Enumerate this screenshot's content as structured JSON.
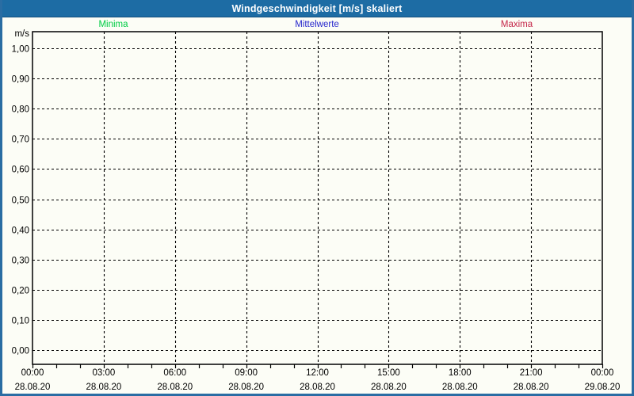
{
  "window": {
    "title": "Windgeschwindigkeit [m/s] skaliert"
  },
  "legend": {
    "items": [
      {
        "label": "Minima",
        "color": "#00cc44"
      },
      {
        "label": "Mittelwerte",
        "color": "#2626cc"
      },
      {
        "label": "Maxima",
        "color": "#c42548"
      }
    ]
  },
  "colors": {
    "titlebar_bg": "#1d6ca4",
    "frame_border": "#2a6da3",
    "page_bg": "#fcfdf6",
    "grid": "#000000",
    "axis_text": "#000000"
  },
  "chart_data": {
    "type": "line",
    "title": "Windgeschwindigkeit [m/s] skaliert",
    "xlabel": "",
    "ylabel": "m/s",
    "ylim": [
      0.0,
      1.0
    ],
    "ytick_step": 0.1,
    "yticks": [
      {
        "value": 1.0,
        "label": "1,00"
      },
      {
        "value": 0.9,
        "label": "0,90"
      },
      {
        "value": 0.8,
        "label": "0,80"
      },
      {
        "value": 0.7,
        "label": "0,70"
      },
      {
        "value": 0.6,
        "label": "0,60"
      },
      {
        "value": 0.5,
        "label": "0,50"
      },
      {
        "value": 0.4,
        "label": "0,40"
      },
      {
        "value": 0.3,
        "label": "0,30"
      },
      {
        "value": 0.2,
        "label": "0,20"
      },
      {
        "value": 0.1,
        "label": "0,10"
      },
      {
        "value": 0.0,
        "label": "0,00"
      }
    ],
    "x_axis": {
      "span_hours": 24,
      "minor_tick_every_hours": 1,
      "major_tick_every_hours": 3
    },
    "xticks": [
      {
        "hour": 0,
        "time": "00:00",
        "date": "28.08.20"
      },
      {
        "hour": 3,
        "time": "03:00",
        "date": "28.08.20"
      },
      {
        "hour": 6,
        "time": "06:00",
        "date": "28.08.20"
      },
      {
        "hour": 9,
        "time": "09:00",
        "date": "28.08.20"
      },
      {
        "hour": 12,
        "time": "12:00",
        "date": "28.08.20"
      },
      {
        "hour": 15,
        "time": "15:00",
        "date": "28.08.20"
      },
      {
        "hour": 18,
        "time": "18:00",
        "date": "28.08.20"
      },
      {
        "hour": 21,
        "time": "21:00",
        "date": "28.08.20"
      },
      {
        "hour": 24,
        "time": "00:00",
        "date": "29.08.20"
      }
    ],
    "grid": "dashed",
    "legend_position": "top",
    "series": [
      {
        "name": "Minima",
        "color": "#00cc44",
        "points": []
      },
      {
        "name": "Mittelwerte",
        "color": "#2626cc",
        "points": []
      },
      {
        "name": "Maxima",
        "color": "#c42548",
        "points": []
      }
    ]
  }
}
